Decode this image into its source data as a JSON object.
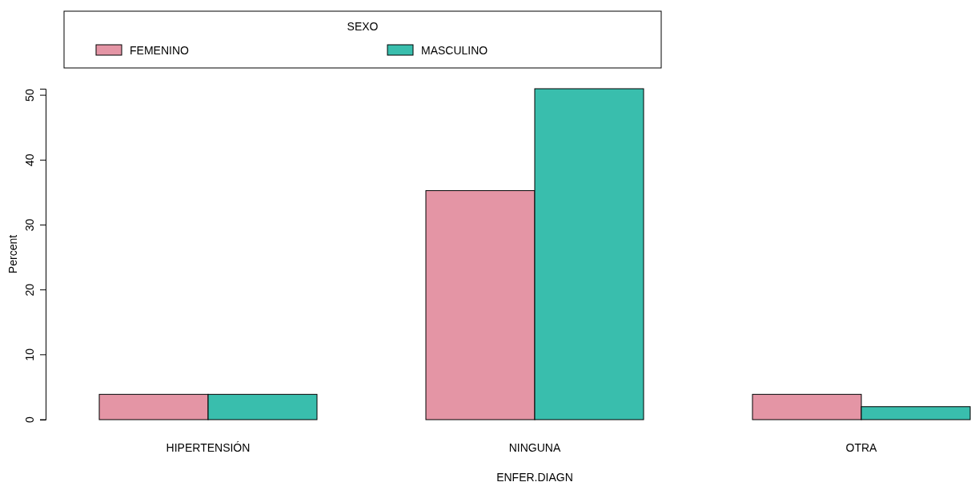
{
  "chart_data": {
    "type": "bar",
    "xlabel": "ENFER.DIAGN",
    "ylabel": "Percent",
    "legend_title": "SEXO",
    "categories": [
      "HIPERTENSIÓN",
      "NINGUNA",
      "OTRA"
    ],
    "series": [
      {
        "name": "FEMENINO",
        "color": "#e495a5",
        "values": [
          3.9,
          35.3,
          3.9
        ]
      },
      {
        "name": "MASCULINO",
        "color": "#39bead",
        "values": [
          3.9,
          51.0,
          2.0
        ]
      }
    ],
    "ylim": [
      0,
      51
    ],
    "yticks": [
      0,
      10,
      20,
      30,
      40,
      50
    ],
    "grid": false,
    "legend": "top"
  }
}
